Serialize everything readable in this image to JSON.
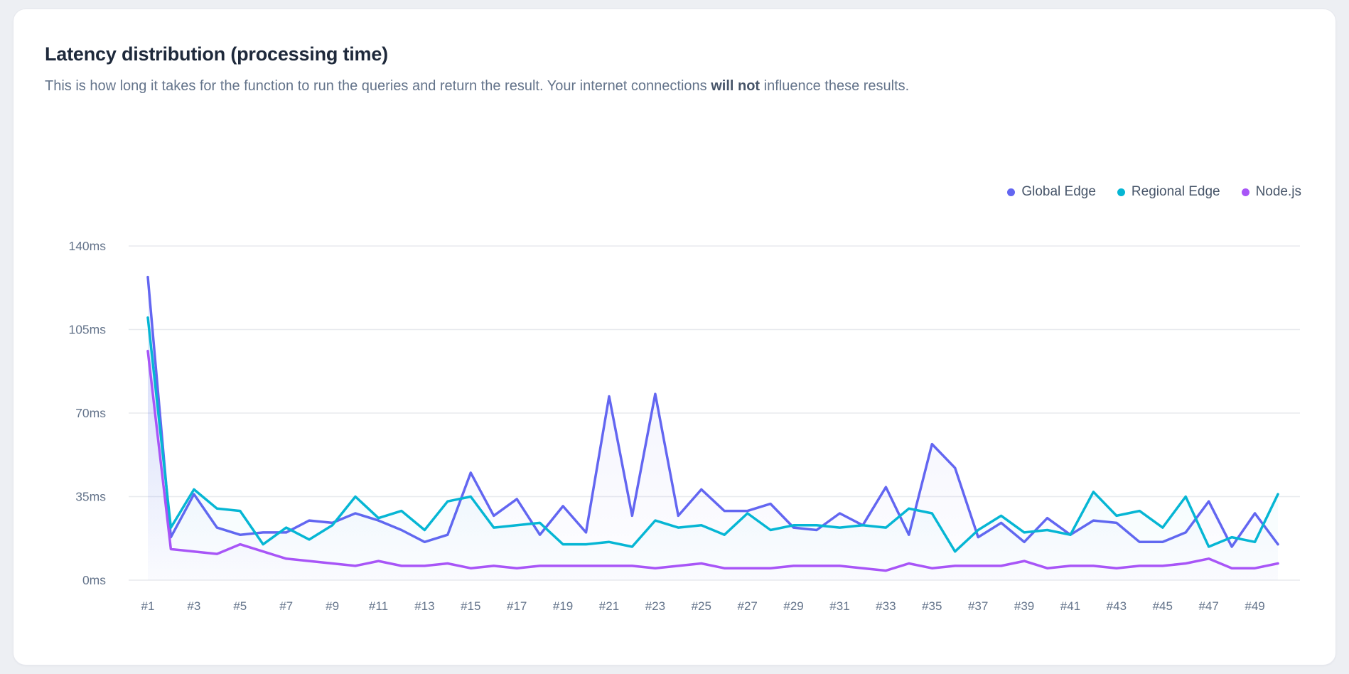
{
  "page": {
    "background": "#edeff3"
  },
  "card": {
    "title": "Latency distribution (processing time)",
    "subtitle": {
      "pre": "This is how long it takes for the function to run the queries and return the result. Your internet connections ",
      "bold": "will not",
      "post": " influence these results."
    }
  },
  "colors": {
    "card_background": "#ffffff",
    "card_border": "#e6e8ee",
    "title_text": "#1e293b",
    "subtitle_text": "#64748b",
    "legend_text": "#475569",
    "grid_line": "#e8eaee",
    "axis_tick_text": "#64748b"
  },
  "chart_data": {
    "type": "line",
    "title": "Latency distribution (processing time)",
    "x_unit": "run index",
    "x": [
      1,
      2,
      3,
      4,
      5,
      6,
      7,
      8,
      9,
      10,
      11,
      12,
      13,
      14,
      15,
      16,
      17,
      18,
      19,
      20,
      21,
      22,
      23,
      24,
      25,
      26,
      27,
      28,
      29,
      30,
      31,
      32,
      33,
      34,
      35,
      36,
      37,
      38,
      39,
      40,
      41,
      42,
      43,
      44,
      45,
      46,
      47,
      48,
      49,
      50
    ],
    "xtick_labels": [
      "#1",
      "#3",
      "#5",
      "#7",
      "#9",
      "#11",
      "#13",
      "#15",
      "#17",
      "#19",
      "#21",
      "#23",
      "#25",
      "#27",
      "#29",
      "#31",
      "#33",
      "#35",
      "#37",
      "#39",
      "#41",
      "#43",
      "#45",
      "#47",
      "#49"
    ],
    "ylim": [
      0,
      140
    ],
    "y_unit": "ms",
    "yticks": [
      {
        "value": 0,
        "label": "0ms"
      },
      {
        "value": 35,
        "label": "35ms"
      },
      {
        "value": 70,
        "label": "70ms"
      },
      {
        "value": 105,
        "label": "105ms"
      },
      {
        "value": 140,
        "label": "140ms"
      }
    ],
    "grid": "horizontal",
    "legend_position": "top-right",
    "series": [
      {
        "name": "Global Edge",
        "color": "#6366f1",
        "values": [
          127,
          18,
          36,
          22,
          19,
          20,
          20,
          25,
          24,
          28,
          25,
          21,
          16,
          19,
          45,
          27,
          34,
          19,
          31,
          20,
          77,
          27,
          78,
          27,
          38,
          29,
          29,
          32,
          22,
          21,
          28,
          23,
          39,
          19,
          57,
          47,
          18,
          24,
          16,
          26,
          19,
          25,
          24,
          16,
          16,
          20,
          33,
          14,
          28,
          15
        ]
      },
      {
        "name": "Regional Edge",
        "color": "#06b6d4",
        "values": [
          110,
          22,
          38,
          30,
          29,
          15,
          22,
          17,
          23,
          35,
          26,
          29,
          21,
          33,
          35,
          22,
          23,
          24,
          15,
          15,
          16,
          14,
          25,
          22,
          23,
          19,
          28,
          21,
          23,
          23,
          22,
          23,
          22,
          30,
          28,
          12,
          21,
          27,
          20,
          21,
          19,
          37,
          27,
          29,
          22,
          35,
          14,
          18,
          16,
          36
        ]
      },
      {
        "name": "Node.js",
        "color": "#a855f7",
        "values": [
          96,
          13,
          12,
          11,
          15,
          12,
          9,
          8,
          7,
          6,
          8,
          6,
          6,
          7,
          5,
          6,
          5,
          6,
          6,
          6,
          6,
          6,
          5,
          6,
          7,
          5,
          5,
          5,
          6,
          6,
          6,
          5,
          4,
          7,
          5,
          6,
          6,
          6,
          8,
          5,
          6,
          6,
          5,
          6,
          6,
          7,
          9,
          5,
          5,
          7
        ]
      }
    ]
  }
}
